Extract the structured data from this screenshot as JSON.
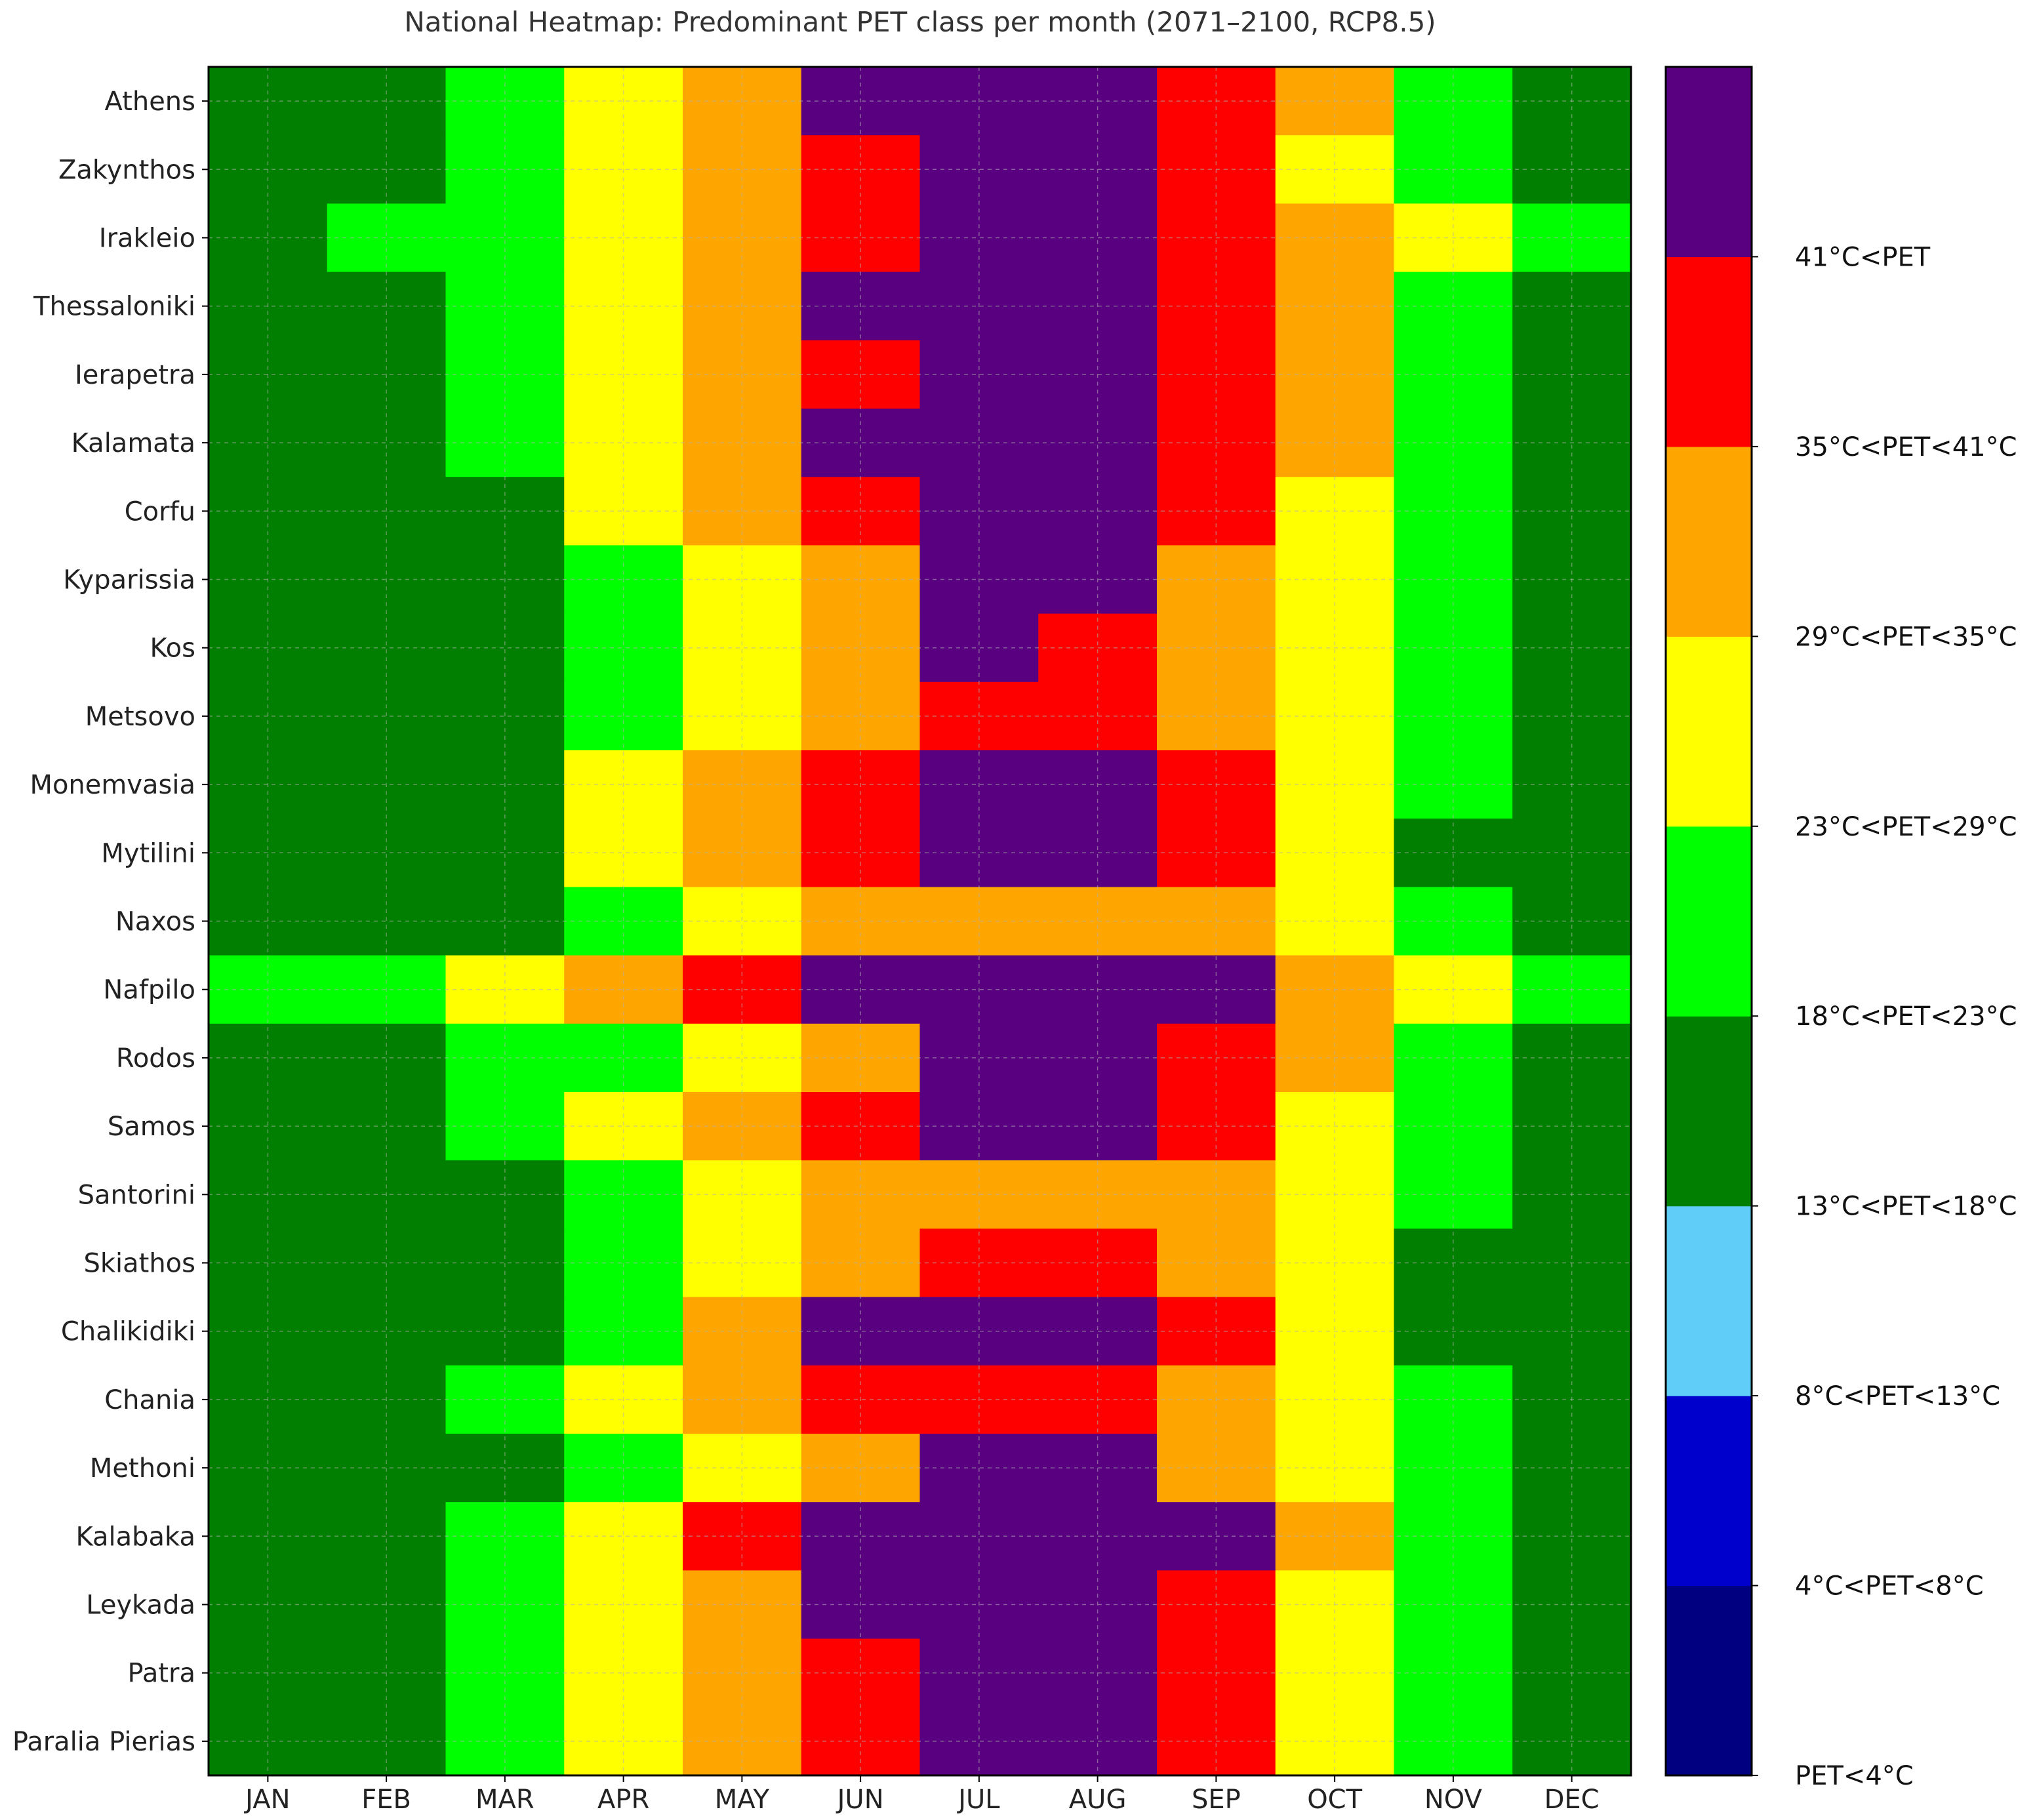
{
  "chart_data": {
    "type": "heatmap",
    "title": "National Heatmap: Predominant PET class per month (2071–2100, RCP8.5)",
    "xlabel": "",
    "ylabel": "",
    "grid": true,
    "legend_position": "right",
    "months": [
      "JAN",
      "FEB",
      "MAR",
      "APR",
      "MAY",
      "JUN",
      "JUL",
      "AUG",
      "SEP",
      "OCT",
      "NOV",
      "DEC"
    ],
    "locations": [
      "Athens",
      "Zakynthos",
      "Irakleio",
      "Thessaloniki",
      "Ierapetra",
      "Kalamata",
      "Corfu",
      "Kyparissia",
      "Kos",
      "Metsovo",
      "Monemvasia",
      "Mytilini",
      "Naxos",
      "Nafpilo",
      "Rodos",
      "Samos",
      "Santorini",
      "Skiathos",
      "Chalikidiki",
      "Chania",
      "Methoni",
      "Kalabaka",
      "Leykada",
      "Patra",
      "Paralia Pierias"
    ],
    "classes": [
      {
        "label": "PET<4°C",
        "color": "#000080"
      },
      {
        "label": "4°C<PET<8°C",
        "color": "#0000cd"
      },
      {
        "label": "8°C<PET<13°C",
        "color": "#5fcdf7"
      },
      {
        "label": "13°C<PET<18°C",
        "color": "#007f00"
      },
      {
        "label": "18°C<PET<23°C",
        "color": "#00ff00"
      },
      {
        "label": "23°C<PET<29°C",
        "color": "#ffff00"
      },
      {
        "label": "29°C<PET<35°C",
        "color": "#ffa500"
      },
      {
        "label": "35°C<PET<41°C",
        "color": "#ff0000"
      },
      {
        "label": "41°C<PET",
        "color": "#58007f"
      }
    ],
    "values": [
      [
        3,
        3,
        4,
        5,
        6,
        8,
        8,
        8,
        7,
        6,
        4,
        3
      ],
      [
        3,
        3,
        4,
        5,
        6,
        7,
        8,
        8,
        7,
        5,
        4,
        3
      ],
      [
        3,
        4,
        4,
        5,
        6,
        7,
        8,
        8,
        7,
        6,
        5,
        4
      ],
      [
        3,
        3,
        4,
        5,
        6,
        8,
        8,
        8,
        7,
        6,
        4,
        3
      ],
      [
        3,
        3,
        4,
        5,
        6,
        7,
        8,
        8,
        7,
        6,
        4,
        3
      ],
      [
        3,
        3,
        4,
        5,
        6,
        8,
        8,
        8,
        7,
        6,
        4,
        3
      ],
      [
        3,
        3,
        3,
        5,
        6,
        7,
        8,
        8,
        7,
        5,
        4,
        3
      ],
      [
        3,
        3,
        3,
        4,
        5,
        6,
        8,
        8,
        6,
        5,
        4,
        3
      ],
      [
        3,
        3,
        3,
        4,
        5,
        6,
        8,
        7,
        6,
        5,
        4,
        3
      ],
      [
        3,
        3,
        3,
        4,
        5,
        6,
        7,
        7,
        6,
        5,
        4,
        3
      ],
      [
        3,
        3,
        3,
        5,
        6,
        7,
        8,
        8,
        7,
        5,
        4,
        3
      ],
      [
        3,
        3,
        3,
        5,
        6,
        7,
        8,
        8,
        7,
        5,
        3,
        3
      ],
      [
        3,
        3,
        3,
        4,
        5,
        6,
        6,
        6,
        6,
        5,
        4,
        3
      ],
      [
        4,
        4,
        5,
        6,
        7,
        8,
        8,
        8,
        8,
        6,
        5,
        4
      ],
      [
        3,
        3,
        4,
        4,
        5,
        6,
        8,
        8,
        7,
        6,
        4,
        3
      ],
      [
        3,
        3,
        4,
        5,
        6,
        7,
        8,
        8,
        7,
        5,
        4,
        3
      ],
      [
        3,
        3,
        3,
        4,
        5,
        6,
        6,
        6,
        6,
        5,
        4,
        3
      ],
      [
        3,
        3,
        3,
        4,
        5,
        6,
        7,
        7,
        6,
        5,
        3,
        3
      ],
      [
        3,
        3,
        3,
        4,
        6,
        8,
        8,
        8,
        7,
        5,
        3,
        3
      ],
      [
        3,
        3,
        4,
        5,
        6,
        7,
        7,
        7,
        6,
        5,
        4,
        3
      ],
      [
        3,
        3,
        3,
        4,
        5,
        6,
        8,
        8,
        6,
        5,
        4,
        3
      ],
      [
        3,
        3,
        4,
        5,
        7,
        8,
        8,
        8,
        8,
        6,
        4,
        3
      ],
      [
        3,
        3,
        4,
        5,
        6,
        8,
        8,
        8,
        7,
        5,
        4,
        3
      ],
      [
        3,
        3,
        4,
        5,
        6,
        7,
        8,
        8,
        7,
        5,
        4,
        3
      ],
      [
        3,
        3,
        4,
        5,
        6,
        7,
        8,
        8,
        7,
        5,
        4,
        3
      ]
    ]
  }
}
